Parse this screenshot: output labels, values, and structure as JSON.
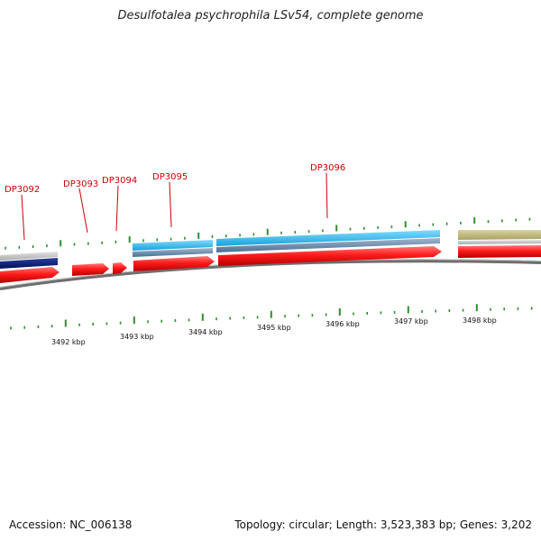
{
  "title": "Desulfotalea psychrophila LSv54, complete genome",
  "footer": {
    "accession": "Accession: NC_006138",
    "genome_info": "Topology: circular; Length: 3,523,383 bp; Genes: 3,202"
  },
  "colors": {
    "gene_label": "#cc0000",
    "forward_cds": "#ff0000",
    "light_blue_track": "#22b5e8",
    "steel_blue_track": "#5f86a8",
    "navy_track": "#001a80",
    "gray_track": "#b8b8b8",
    "olive_track": "#bdb77a",
    "tick": "#2f8f2f",
    "backbone": "#888888"
  },
  "genes": [
    {
      "label": "DP3092"
    },
    {
      "label": "DP3093"
    },
    {
      "label": "DP3094"
    },
    {
      "label": "DP3095"
    },
    {
      "label": "DP3096"
    }
  ],
  "scale": {
    "unit": "kbp",
    "labels": [
      "3492 kbp",
      "3493 kbp",
      "3494 kbp",
      "3495 kbp",
      "3496 kbp",
      "3497 kbp",
      "3498 kbp"
    ]
  }
}
